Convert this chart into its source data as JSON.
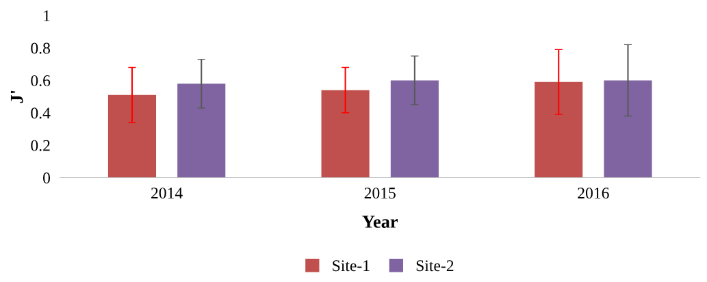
{
  "chart_data": {
    "type": "bar",
    "xlabel": "Year",
    "ylabel": "J'",
    "categories": [
      "2014",
      "2015",
      "2016"
    ],
    "series": [
      {
        "name": "Site-1",
        "color": "#c0504d",
        "values": [
          0.51,
          0.54,
          0.59
        ],
        "errors": [
          0.17,
          0.14,
          0.2
        ]
      },
      {
        "name": "Site-2",
        "color": "#8064a2",
        "values": [
          0.58,
          0.6,
          0.6
        ],
        "errors": [
          0.15,
          0.15,
          0.22
        ]
      }
    ],
    "ylim": [
      0,
      1
    ],
    "yticks": [
      0,
      0.2,
      0.4,
      0.6,
      0.8,
      1
    ],
    "grid": false,
    "legend": "bottom"
  }
}
